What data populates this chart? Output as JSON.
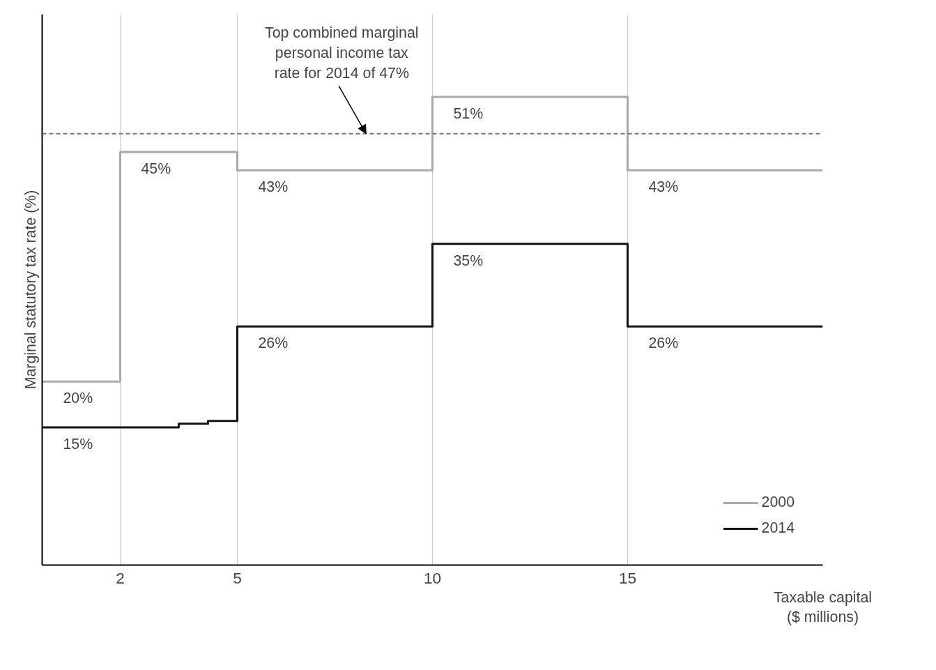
{
  "chart_data": {
    "type": "step",
    "ylabel": "Marginal statutory tax rate (%)",
    "xlabel": "Taxable capital\n($ millions)",
    "xlim": [
      0,
      20
    ],
    "xticks": [
      2,
      5,
      10,
      15
    ],
    "ylim": [
      0,
      60
    ],
    "tick_labels": "x",
    "grid": "x",
    "legend": "bottom right",
    "line_style": "solid",
    "series": [
      {
        "name": "2000",
        "color": "#aaaaaa",
        "x": [
          0,
          2,
          5,
          10,
          15,
          20
        ],
        "values": [
          20,
          45,
          43,
          51,
          43,
          43
        ],
        "value_labels": [
          "20%",
          "45%",
          "43%",
          "51%",
          "43%",
          null
        ]
      },
      {
        "name": "2014",
        "color": "#111111",
        "x": [
          0,
          3.5,
          4.25,
          5,
          10,
          15,
          20
        ],
        "values": [
          15,
          15.4,
          15.7,
          26,
          35,
          26,
          26
        ],
        "value_labels": [
          "15%",
          null,
          null,
          "26%",
          "35%",
          "26%",
          null
        ]
      }
    ],
    "ref_lines": [
      {
        "axis": "y",
        "value": 47,
        "color": "#777777",
        "line_style": "dashed"
      }
    ],
    "annotations": [
      {
        "text": "Top combined marginal\npersonal income tax\nrate for 2014 of 47%",
        "x": 8.3,
        "y": 47
      }
    ]
  }
}
